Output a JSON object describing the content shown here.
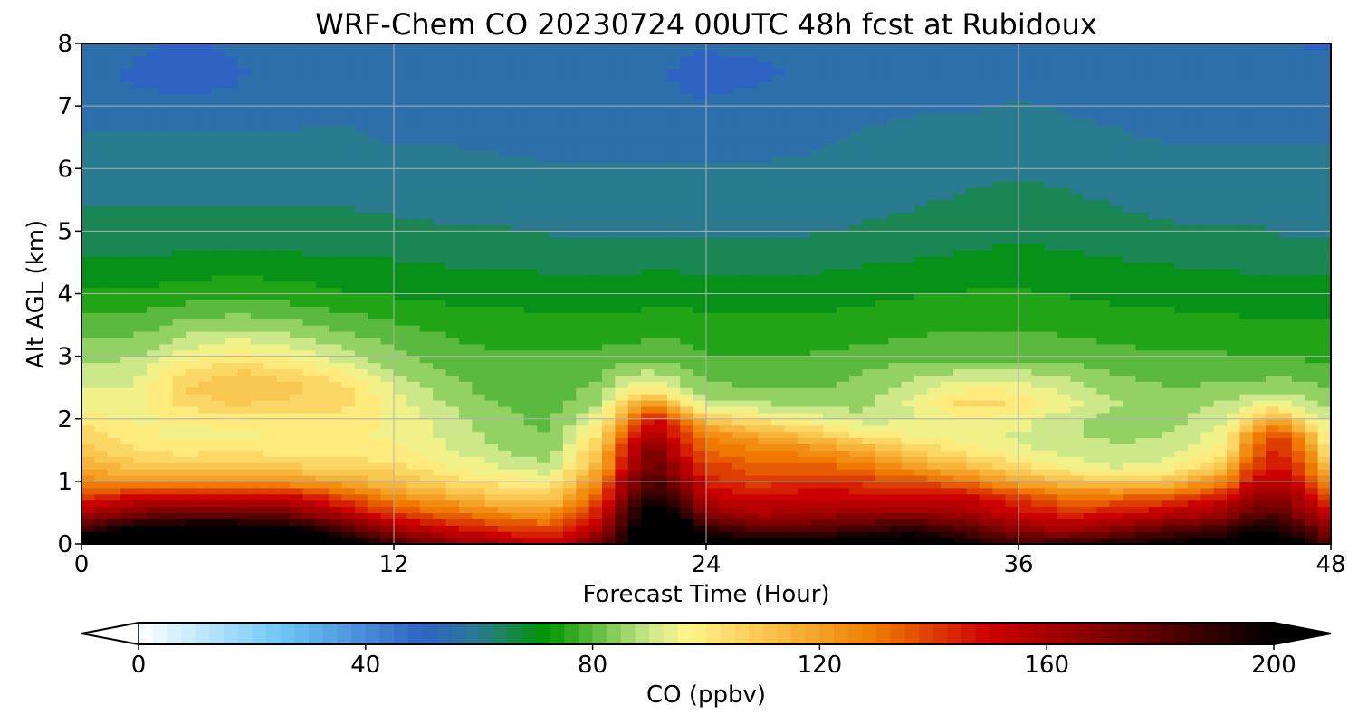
{
  "chart_data": {
    "type": "heatmap",
    "subtype": "filled-contour time-height cross-section",
    "title": "WRF-Chem CO  20230724 00UTC 48h fcst at Rubidoux",
    "xlabel": "Forecast Time (Hour)",
    "ylabel": "Alt AGL (km)",
    "xlim": [
      0,
      48
    ],
    "ylim": [
      0,
      8
    ],
    "x_ticks": [
      0,
      12,
      24,
      36,
      48
    ],
    "y_ticks": [
      0,
      1,
      2,
      3,
      4,
      5,
      6,
      7,
      8
    ],
    "grid": true,
    "colorbar": {
      "label": "CO  (ppbv)",
      "min": 0,
      "max": 200,
      "ticks": [
        0,
        40,
        80,
        120,
        160,
        200
      ],
      "extend": "both",
      "orientation": "horizontal",
      "placement": "bottom",
      "stops": [
        {
          "value": 0,
          "color": "#ffffff"
        },
        {
          "value": 25,
          "color": "#6fc8f5"
        },
        {
          "value": 50,
          "color": "#2e63c4"
        },
        {
          "value": 60,
          "color": "#2a7a8f"
        },
        {
          "value": 72,
          "color": "#009600"
        },
        {
          "value": 90,
          "color": "#cde88a"
        },
        {
          "value": 97,
          "color": "#fff58a"
        },
        {
          "value": 115,
          "color": "#f7b43a"
        },
        {
          "value": 130,
          "color": "#f07a00"
        },
        {
          "value": 150,
          "color": "#cc0000"
        },
        {
          "value": 175,
          "color": "#6e0000"
        },
        {
          "value": 200,
          "color": "#000000"
        }
      ],
      "under_color": "#ffffff",
      "over_color": "#000000"
    },
    "field": {
      "units": "ppbv",
      "x_hours": [
        0,
        2,
        4,
        6,
        8,
        10,
        12,
        14,
        16,
        18,
        20,
        21,
        22,
        23,
        24,
        26,
        28,
        30,
        32,
        34,
        36,
        38,
        40,
        42,
        44,
        45,
        46,
        47,
        48
      ],
      "y_km": [
        0,
        0.25,
        0.5,
        0.75,
        1,
        1.25,
        1.5,
        1.75,
        2,
        2.25,
        2.5,
        2.75,
        3,
        3.5,
        4,
        4.5,
        5,
        5.5,
        6,
        6.5,
        7,
        7.5,
        8
      ],
      "values": [
        [
          215,
          212,
          212,
          212,
          212,
          210,
          185,
          170,
          160,
          150,
          175,
          200,
          215,
          215,
          205,
          205,
          205,
          210,
          212,
          200,
          185,
          190,
          195,
          200,
          205,
          210,
          208,
          200,
          180
        ],
        [
          185,
          200,
          205,
          205,
          200,
          185,
          160,
          150,
          142,
          138,
          160,
          195,
          210,
          210,
          190,
          178,
          180,
          185,
          190,
          180,
          165,
          160,
          170,
          180,
          185,
          195,
          195,
          182,
          165
        ],
        [
          158,
          170,
          175,
          175,
          172,
          155,
          140,
          132,
          125,
          122,
          148,
          185,
          205,
          195,
          168,
          158,
          162,
          165,
          165,
          160,
          150,
          142,
          148,
          155,
          162,
          178,
          180,
          165,
          150
        ],
        [
          140,
          150,
          150,
          152,
          150,
          138,
          125,
          118,
          110,
          108,
          138,
          175,
          195,
          180,
          155,
          148,
          152,
          152,
          152,
          150,
          140,
          130,
          132,
          138,
          148,
          165,
          168,
          155,
          138
        ],
        [
          125,
          122,
          122,
          125,
          122,
          118,
          112,
          105,
          100,
          98,
          128,
          165,
          185,
          168,
          145,
          140,
          142,
          140,
          138,
          130,
          118,
          112,
          108,
          112,
          128,
          150,
          155,
          142,
          120
        ],
        [
          118,
          110,
          110,
          110,
          108,
          105,
          104,
          98,
          92,
          88,
          118,
          155,
          178,
          158,
          140,
          134,
          134,
          130,
          120,
          112,
          104,
          95,
          92,
          96,
          112,
          140,
          148,
          135,
          105
        ],
        [
          112,
          102,
          100,
          102,
          100,
          100,
          99,
          93,
          88,
          84,
          112,
          150,
          172,
          150,
          132,
          128,
          125,
          118,
          108,
          100,
          94,
          90,
          88,
          90,
          100,
          132,
          145,
          130,
          95
        ],
        [
          106,
          99,
          96,
          97,
          98,
          98,
          97,
          91,
          86,
          82,
          105,
          140,
          162,
          142,
          126,
          118,
          110,
          100,
          96,
          94,
          92,
          88,
          86,
          88,
          96,
          125,
          140,
          120,
          92
        ],
        [
          100,
          97,
          98,
          100,
          100,
          100,
          97,
          90,
          84,
          81,
          96,
          128,
          150,
          132,
          110,
          100,
          95,
          90,
          92,
          98,
          95,
          88,
          85,
          86,
          92,
          108,
          118,
          100,
          88
        ],
        [
          95,
          94,
          104,
          108,
          106,
          104,
          95,
          87,
          82,
          80,
          88,
          112,
          122,
          105,
          90,
          88,
          86,
          85,
          94,
          104,
          102,
          94,
          87,
          84,
          88,
          92,
          95,
          90,
          85
        ],
        [
          92,
          93,
          108,
          112,
          110,
          104,
          92,
          85,
          80,
          80,
          84,
          95,
          98,
          90,
          84,
          82,
          82,
          84,
          90,
          97,
          96,
          90,
          85,
          82,
          84,
          84,
          86,
          84,
          82
        ],
        [
          89,
          91,
          102,
          108,
          104,
          98,
          88,
          82,
          79,
          80,
          82,
          86,
          88,
          84,
          80,
          79,
          80,
          82,
          86,
          88,
          88,
          85,
          82,
          80,
          80,
          80,
          81,
          80,
          79
        ],
        [
          86,
          87,
          95,
          100,
          96,
          90,
          84,
          80,
          78,
          78,
          79,
          80,
          81,
          80,
          78,
          77,
          78,
          79,
          80,
          81,
          81,
          80,
          79,
          78,
          78,
          77,
          77,
          77,
          76
        ],
        [
          80,
          80,
          84,
          86,
          84,
          81,
          78,
          76,
          75,
          74,
          74,
          74,
          75,
          75,
          74,
          74,
          74,
          75,
          76,
          77,
          77,
          76,
          75,
          74,
          74,
          73,
          73,
          73,
          73
        ],
        [
          74,
          73,
          75,
          76,
          75,
          73,
          72,
          71,
          71,
          70,
          70,
          70,
          71,
          71,
          70,
          70,
          70,
          71,
          72,
          73,
          73,
          72,
          71,
          71,
          70,
          70,
          70,
          70,
          70
        ],
        [
          68,
          68,
          69,
          70,
          69,
          68,
          68,
          67,
          67,
          66,
          66,
          66,
          67,
          66,
          66,
          66,
          66,
          67,
          68,
          69,
          70,
          69,
          68,
          67,
          67,
          66,
          66,
          66,
          66
        ],
        [
          64,
          64,
          65,
          65,
          65,
          64,
          64,
          63,
          63,
          62,
          62,
          62,
          62,
          62,
          62,
          62,
          62,
          63,
          64,
          65,
          66,
          65,
          64,
          63,
          63,
          63,
          62,
          62,
          62
        ],
        [
          62,
          62,
          62,
          62,
          62,
          62,
          61,
          61,
          60,
          60,
          60,
          60,
          60,
          60,
          60,
          60,
          60,
          61,
          62,
          63,
          64,
          63,
          62,
          61,
          61,
          61,
          60,
          60,
          60
        ],
        [
          60,
          60,
          60,
          60,
          60,
          60,
          59,
          59,
          58,
          58,
          58,
          58,
          58,
          58,
          58,
          58,
          58,
          59,
          60,
          61,
          62,
          61,
          60,
          59,
          59,
          59,
          59,
          59,
          59
        ],
        [
          58,
          58,
          58,
          58,
          58,
          58,
          57,
          57,
          57,
          56,
          56,
          56,
          55,
          55,
          55,
          56,
          57,
          58,
          59,
          59,
          60,
          59,
          58,
          57,
          57,
          57,
          57,
          57,
          57
        ],
        [
          55,
          54,
          53,
          54,
          56,
          57,
          57,
          56,
          56,
          55,
          55,
          55,
          54,
          53,
          53,
          54,
          55,
          56,
          57,
          57,
          58,
          57,
          56,
          56,
          56,
          56,
          56,
          56,
          56
        ],
        [
          54,
          52,
          51,
          52,
          55,
          56,
          56,
          55,
          55,
          54,
          54,
          54,
          53,
          52,
          51,
          52,
          53,
          54,
          55,
          55,
          56,
          55,
          55,
          55,
          55,
          55,
          55,
          55,
          55
        ],
        [
          55,
          53,
          52,
          53,
          55,
          56,
          56,
          55,
          55,
          54,
          54,
          54,
          54,
          53,
          53,
          53,
          53,
          54,
          55,
          55,
          55,
          55,
          55,
          55,
          55,
          54,
          53,
          52,
          52
        ]
      ]
    }
  }
}
